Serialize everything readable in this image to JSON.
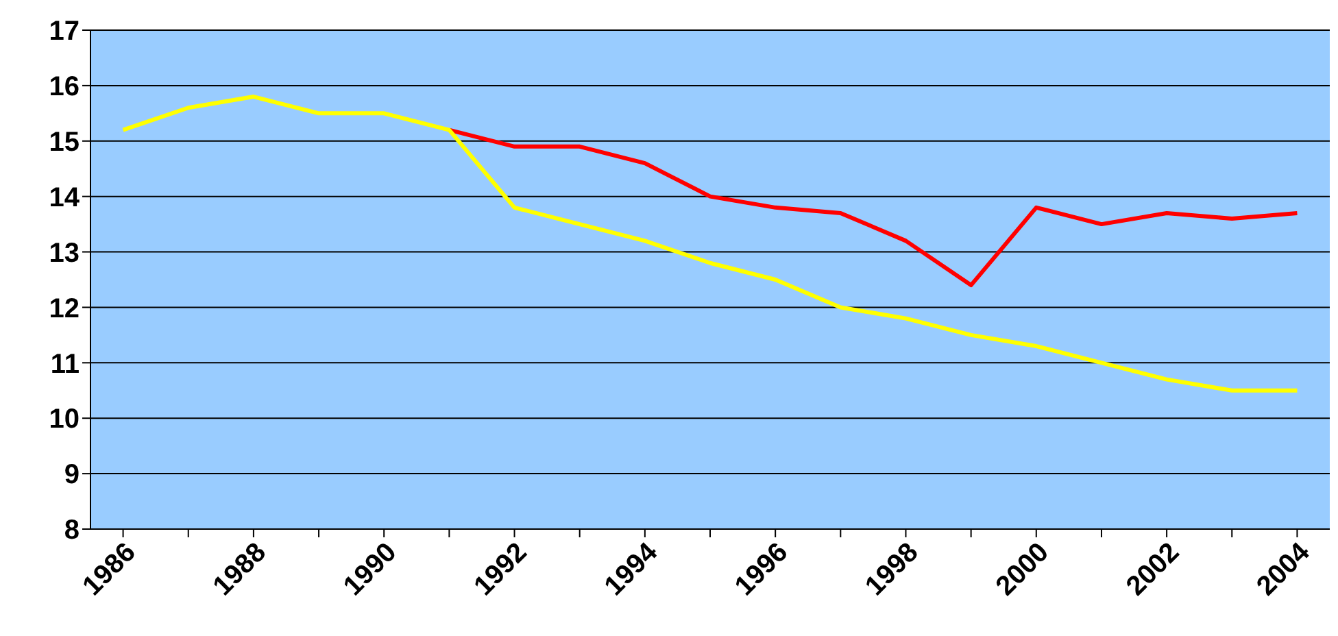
{
  "chart_data": {
    "type": "line",
    "categories": [
      "1986",
      null,
      "1988",
      null,
      "1990",
      null,
      "1992",
      null,
      "1994",
      null,
      "1996",
      null,
      "1998",
      null,
      "2000",
      null,
      "2002",
      null,
      "2004"
    ],
    "series": [
      {
        "color": "#ff0000",
        "values": [
          null,
          null,
          null,
          null,
          null,
          15.2,
          14.9,
          14.9,
          14.6,
          14.0,
          13.8,
          13.7,
          13.2,
          12.4,
          13.8,
          13.5,
          13.7,
          13.6,
          13.7
        ]
      },
      {
        "color": "#ffff00",
        "values": [
          15.2,
          15.6,
          15.8,
          15.5,
          15.5,
          15.2,
          13.8,
          13.5,
          13.2,
          12.8,
          12.5,
          12.0,
          11.8,
          11.5,
          11.3,
          11.0,
          10.7,
          10.5,
          10.5
        ]
      }
    ],
    "ylim": [
      8,
      17
    ],
    "yticks": [
      8,
      9,
      10,
      11,
      12,
      13,
      14,
      15,
      16,
      17
    ],
    "grid": "y",
    "marker": "none",
    "line_style": "solid",
    "legend": false
  }
}
